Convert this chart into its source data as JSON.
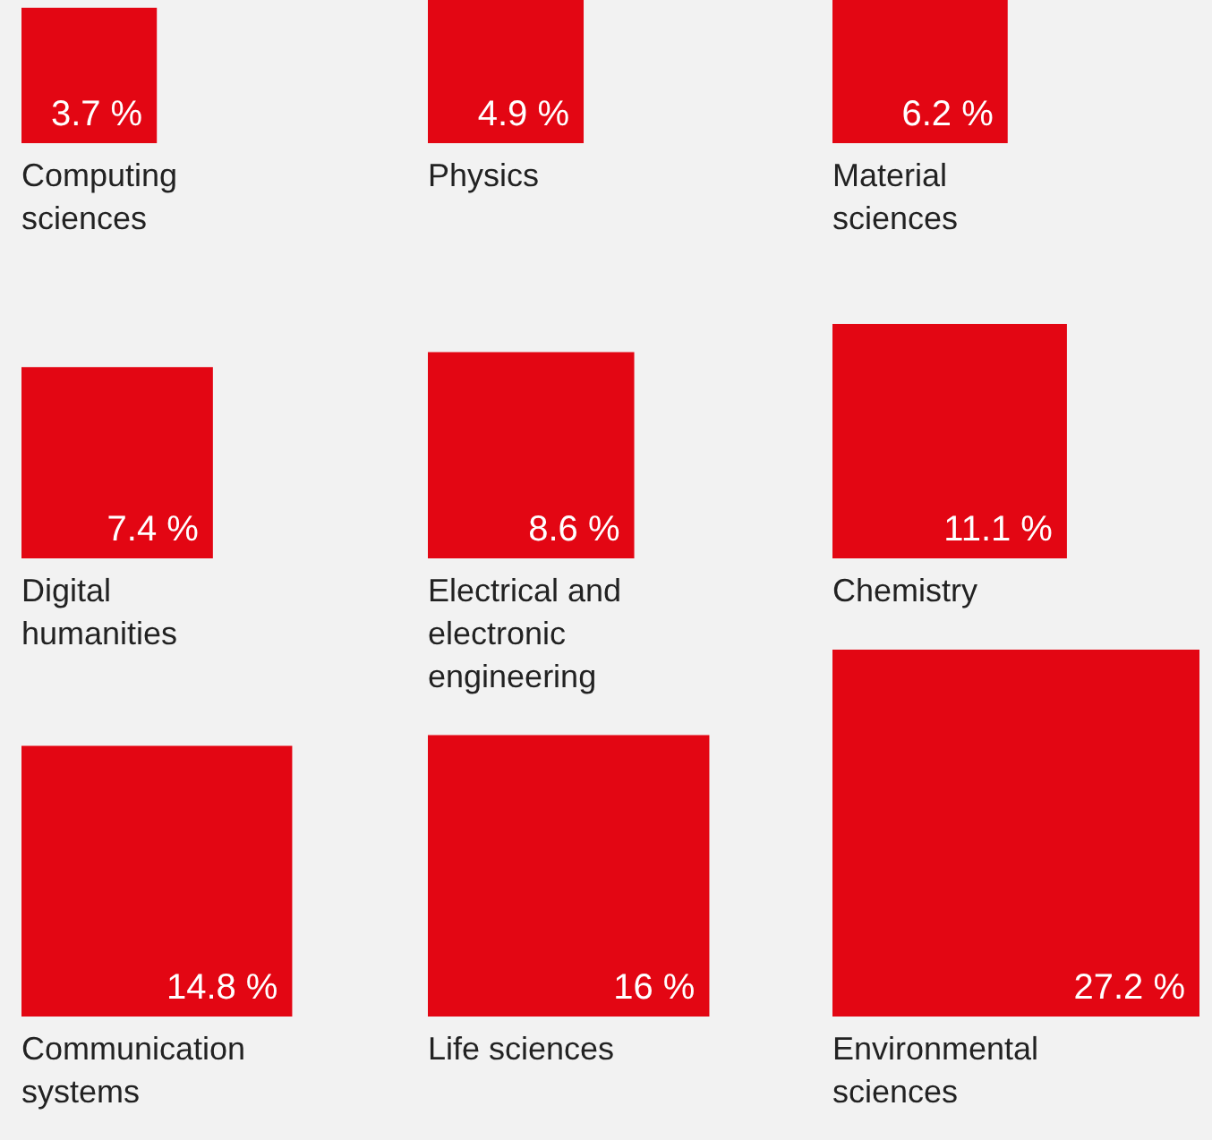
{
  "chart_data": {
    "type": "other",
    "categories": [
      "Computing sciences",
      "Physics",
      "Material sciences",
      "Digital humanities",
      "Electrical and electronic engineering",
      "Chemistry",
      "Communication systems",
      "Life sciences",
      "Environmental sciences"
    ],
    "values": [
      3.7,
      4.9,
      6.2,
      7.4,
      8.6,
      11.1,
      14.8,
      16,
      27.2
    ],
    "value_labels": [
      "3.7 %",
      "4.9 %",
      "6.2 %",
      "7.4 %",
      "8.6 %",
      "11.1 %",
      "14.8 %",
      "16 %",
      "27.2 %"
    ],
    "color": "#e30613"
  }
}
